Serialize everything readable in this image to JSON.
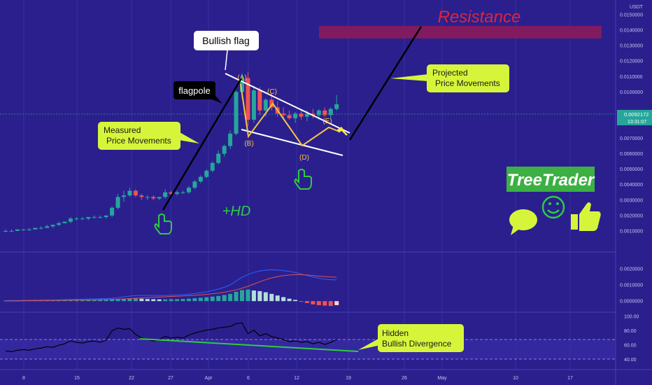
{
  "header": {
    "currency": "USDT"
  },
  "price_axis": {
    "labels": [
      "0.0150000",
      "0.0140000",
      "0.0130000",
      "0.0120000",
      "0.0110000",
      "0.0100000",
      "0.0080000",
      "0.0070000",
      "0.0060000",
      "0.0050000",
      "0.0040000",
      "0.0030000",
      "0.0020000",
      "0.0010000"
    ],
    "current_price": "0.0092172",
    "countdown": "13:31:07"
  },
  "macd_axis": {
    "labels": [
      "0.0020000",
      "0.0010000",
      "0.0000000"
    ]
  },
  "rsi_axis": {
    "labels": [
      "100.00",
      "80.00",
      "60.00",
      "40.00"
    ]
  },
  "time_axis": {
    "labels": [
      "8",
      "15",
      "22",
      "27",
      "Apr",
      "6",
      "12",
      "19",
      "26",
      "May",
      "10",
      "17"
    ]
  },
  "annotations": {
    "resistance": "Resistance",
    "bullish_flag": "Bullish flag",
    "flagpole": "flagpole",
    "measured_line1": "Measured",
    "measured_line2": "Price Movements",
    "projected_line1": "Projected",
    "projected_line2": "Price Movements",
    "wave_a": "(A)",
    "wave_b": "(B)",
    "wave_c": "(C)",
    "wave_d": "(D)",
    "wave_e": "(E)",
    "hd": "+HD",
    "divergence_line1": "Hidden",
    "divergence_line2": "Bullish Divergence",
    "brand": "TreeTrader"
  },
  "colors": {
    "background": "#2b1f8e",
    "candle_up": "#26a69a",
    "candle_down": "#ef5350",
    "resistance_zone": "#8b1a5a",
    "callout": "#d6f53a",
    "wave": "#f5c542",
    "green_accent": "#2ecc40",
    "brand_bg": "#3cb043"
  },
  "chart_data": {
    "type": "candlestick",
    "x_labels": [
      "8",
      "15",
      "22",
      "27",
      "Apr",
      "6",
      "12",
      "19",
      "26",
      "May",
      "10",
      "17"
    ],
    "y_range": [
      0.0,
      0.0155
    ],
    "current_price": 0.0092172,
    "candles_ohlc": [
      [
        0.001,
        0.0011,
        0.0009,
        0.001
      ],
      [
        0.001,
        0.0011,
        0.001,
        0.001
      ],
      [
        0.001,
        0.0011,
        0.001,
        0.0011
      ],
      [
        0.0011,
        0.0011,
        0.001,
        0.0011
      ],
      [
        0.0011,
        0.0012,
        0.001,
        0.0011
      ],
      [
        0.0011,
        0.0012,
        0.0011,
        0.0012
      ],
      [
        0.0012,
        0.0013,
        0.0011,
        0.0012
      ],
      [
        0.0012,
        0.0014,
        0.0012,
        0.0013
      ],
      [
        0.0013,
        0.0014,
        0.0012,
        0.0014
      ],
      [
        0.0014,
        0.0016,
        0.0013,
        0.0015
      ],
      [
        0.0015,
        0.0016,
        0.0015,
        0.0016
      ],
      [
        0.0016,
        0.0019,
        0.0015,
        0.0018
      ],
      [
        0.0018,
        0.0019,
        0.0017,
        0.0018
      ],
      [
        0.0018,
        0.0019,
        0.0017,
        0.0018
      ],
      [
        0.0018,
        0.0019,
        0.0017,
        0.0019
      ],
      [
        0.0019,
        0.002,
        0.0018,
        0.0019
      ],
      [
        0.0019,
        0.002,
        0.0018,
        0.0019
      ],
      [
        0.0019,
        0.002,
        0.0018,
        0.002
      ],
      [
        0.002,
        0.0026,
        0.0019,
        0.0025
      ],
      [
        0.0025,
        0.0034,
        0.0024,
        0.0032
      ],
      [
        0.0032,
        0.0036,
        0.0029,
        0.0033
      ],
      [
        0.0033,
        0.0038,
        0.0032,
        0.0036
      ],
      [
        0.0036,
        0.0037,
        0.0032,
        0.0033
      ],
      [
        0.0033,
        0.0034,
        0.003,
        0.0032
      ],
      [
        0.0032,
        0.0033,
        0.003,
        0.0032
      ],
      [
        0.0032,
        0.0033,
        0.003,
        0.0031
      ],
      [
        0.0031,
        0.0032,
        0.003,
        0.0032
      ],
      [
        0.0032,
        0.0037,
        0.0031,
        0.0035
      ],
      [
        0.0035,
        0.0036,
        0.0032,
        0.0034
      ],
      [
        0.0034,
        0.0036,
        0.0033,
        0.0035
      ],
      [
        0.0035,
        0.0036,
        0.0034,
        0.0035
      ],
      [
        0.0035,
        0.0039,
        0.0034,
        0.0038
      ],
      [
        0.0038,
        0.0043,
        0.0037,
        0.0042
      ],
      [
        0.0042,
        0.0046,
        0.0041,
        0.0045
      ],
      [
        0.0045,
        0.005,
        0.0044,
        0.0049
      ],
      [
        0.0049,
        0.0055,
        0.0048,
        0.0054
      ],
      [
        0.0054,
        0.0062,
        0.0053,
        0.006
      ],
      [
        0.006,
        0.0066,
        0.0058,
        0.0065
      ],
      [
        0.0065,
        0.0075,
        0.0063,
        0.0073
      ],
      [
        0.0073,
        0.0101,
        0.0072,
        0.01
      ],
      [
        0.01,
        0.0112,
        0.0096,
        0.0109
      ],
      [
        0.0109,
        0.0113,
        0.0078,
        0.0082
      ],
      [
        0.0082,
        0.0104,
        0.008,
        0.0101
      ],
      [
        0.0101,
        0.0103,
        0.0085,
        0.0088
      ],
      [
        0.0088,
        0.0096,
        0.0084,
        0.0095
      ],
      [
        0.0095,
        0.0099,
        0.0088,
        0.009
      ],
      [
        0.009,
        0.0094,
        0.0084,
        0.0086
      ],
      [
        0.0086,
        0.009,
        0.0083,
        0.0085
      ],
      [
        0.0085,
        0.0088,
        0.0082,
        0.0083
      ],
      [
        0.0083,
        0.0087,
        0.008,
        0.0086
      ],
      [
        0.0086,
        0.0088,
        0.0082,
        0.0084
      ],
      [
        0.0084,
        0.0088,
        0.0081,
        0.0086
      ],
      [
        0.0086,
        0.0089,
        0.0083,
        0.0085
      ],
      [
        0.0085,
        0.0089,
        0.0082,
        0.0088
      ],
      [
        0.0088,
        0.009,
        0.0084,
        0.0085
      ],
      [
        0.0085,
        0.009,
        0.0083,
        0.0089
      ],
      [
        0.0089,
        0.0098,
        0.0088,
        0.0092
      ]
    ],
    "macd": {
      "y_range": [
        -0.0006,
        0.0027
      ],
      "histogram": [
        3e-05,
        3e-05,
        3e-05,
        4e-05,
        4e-05,
        4e-05,
        4e-05,
        5e-05,
        5e-05,
        5e-05,
        6e-05,
        6e-05,
        6e-05,
        7e-05,
        7e-05,
        7e-05,
        8e-05,
        8e-05,
        0.0001,
        0.00012,
        0.00014,
        0.00016,
        0.00016,
        0.00015,
        0.00013,
        0.00012,
        0.00011,
        0.00011,
        0.00012,
        0.00012,
        0.00013,
        0.00015,
        0.00018,
        0.00021,
        0.00024,
        0.00028,
        0.00032,
        0.00038,
        0.00045,
        0.00058,
        0.00068,
        0.00072,
        0.00066,
        0.00062,
        0.00055,
        0.00045,
        0.00035,
        0.00025,
        0.00015,
        8e-05,
        -2e-05,
        -0.00012,
        -0.0002,
        -0.00025,
        -0.00028,
        -0.0003,
        -0.00025
      ],
      "macd_line": [
        3e-05,
        4e-05,
        4e-05,
        5e-05,
        5e-05,
        6e-05,
        6e-05,
        7e-05,
        7e-05,
        8e-05,
        9e-05,
        0.0001,
        0.00011,
        0.00012,
        0.00013,
        0.00014,
        0.00015,
        0.00016,
        0.00018,
        0.00022,
        0.00027,
        0.00031,
        0.00034,
        0.00035,
        0.00035,
        0.00035,
        0.00035,
        0.00035,
        0.00036,
        0.00038,
        0.0004,
        0.00043,
        0.00047,
        0.00052,
        0.00058,
        0.00066,
        0.00075,
        0.00086,
        0.001,
        0.00125,
        0.00148,
        0.00165,
        0.00178,
        0.00187,
        0.00192,
        0.00195,
        0.00193,
        0.00189,
        0.00184,
        0.00177,
        0.00168,
        0.00159,
        0.0015,
        0.00142,
        0.00136,
        0.00133,
        0.00131
      ],
      "signal_line": [
        1e-05,
        1e-05,
        2e-05,
        2e-05,
        3e-05,
        3e-05,
        3e-05,
        4e-05,
        4e-05,
        5e-05,
        5e-05,
        6e-05,
        6e-05,
        7e-05,
        8e-05,
        8e-05,
        9e-05,
        0.0001,
        0.00011,
        0.00012,
        0.00014,
        0.00016,
        0.00018,
        0.0002,
        0.00022,
        0.00024,
        0.00026,
        0.00027,
        0.00029,
        0.0003,
        0.00032,
        0.00034,
        0.00036,
        0.00039,
        0.00042,
        0.00046,
        0.0005,
        0.00055,
        0.00062,
        0.0007,
        0.0008,
        0.00092,
        0.00106,
        0.0012,
        0.00133,
        0.00144,
        0.00152,
        0.00158,
        0.00162,
        0.00164,
        0.00164,
        0.00162,
        0.00159,
        0.00155,
        0.00152,
        0.0015,
        0.00148
      ]
    },
    "rsi": {
      "y_range": [
        30,
        100
      ],
      "bands": [
        70,
        30
      ],
      "values": [
        52,
        51,
        53,
        54,
        53,
        55,
        56,
        58,
        57,
        60,
        62,
        66,
        64,
        63,
        65,
        66,
        64,
        67,
        80,
        84,
        82,
        83,
        75,
        70,
        68,
        66,
        68,
        72,
        70,
        71,
        70,
        74,
        77,
        79,
        81,
        82,
        84,
        85,
        86,
        90,
        91,
        76,
        81,
        73,
        76,
        72,
        70,
        68,
        65,
        66,
        64,
        65,
        62,
        64,
        61,
        64,
        68
      ]
    },
    "flag_geometry": {
      "upper_line": [
        [
          1,
          0.0125
        ],
        [
          13,
          0.008
        ]
      ],
      "lower_line": [
        [
          1,
          0.008
        ],
        [
          15,
          0.0065
        ]
      ]
    }
  }
}
